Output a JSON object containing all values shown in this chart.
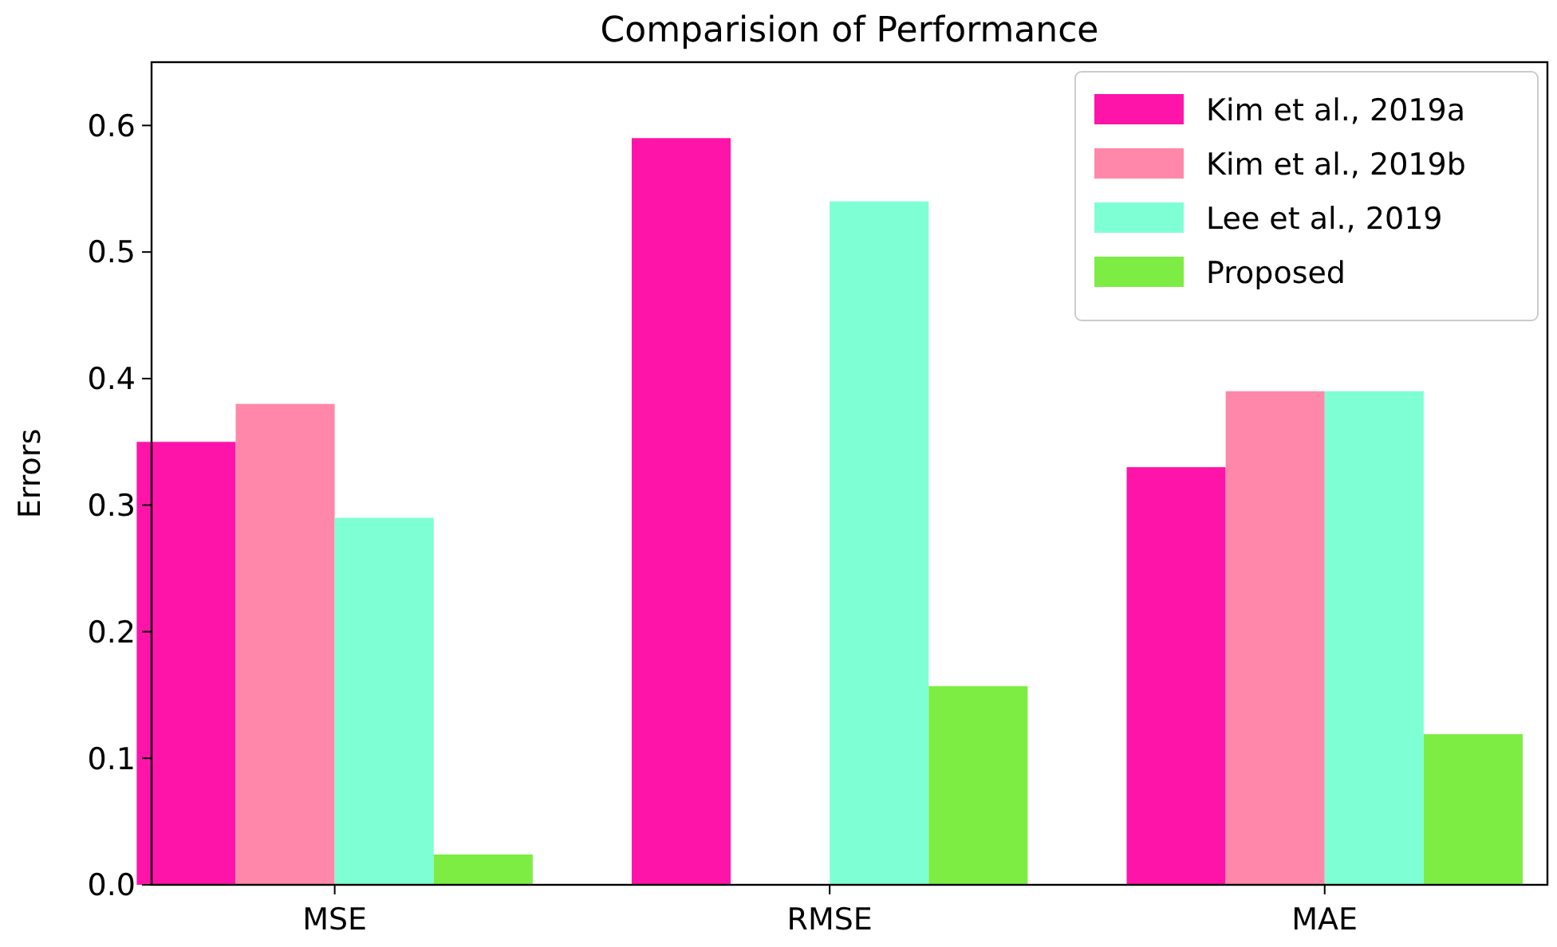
{
  "chart_data": {
    "type": "bar",
    "title": "Comparision of Performance",
    "ylabel": "Errors",
    "categories": [
      "MSE",
      "RMSE",
      "MAE"
    ],
    "series": [
      {
        "name": "Kim et al., 2019a",
        "color": "#ff14aa",
        "values": [
          0.35,
          0.59,
          0.33
        ]
      },
      {
        "name": "Kim et al., 2019b",
        "color": "#ff88aa",
        "values": [
          0.38,
          null,
          0.39
        ]
      },
      {
        "name": "Lee et al., 2019",
        "color": "#7fffd4",
        "values": [
          0.29,
          0.54,
          0.39
        ]
      },
      {
        "name": "Proposed",
        "color": "#7ded44",
        "values": [
          0.024,
          0.157,
          0.119
        ]
      }
    ],
    "ylim": [
      0,
      0.65
    ],
    "yticks": [
      {
        "value": 0,
        "label": "0.0"
      },
      {
        "value": 0.1,
        "label": "0.1"
      },
      {
        "value": 0.2,
        "label": "0.2"
      },
      {
        "value": 0.3,
        "label": "0.3"
      },
      {
        "value": 0.4,
        "label": "0.4"
      },
      {
        "value": 0.5,
        "label": "0.5"
      },
      {
        "value": 0.6,
        "label": "0.6"
      }
    ],
    "grid": false,
    "legend": "top right"
  }
}
